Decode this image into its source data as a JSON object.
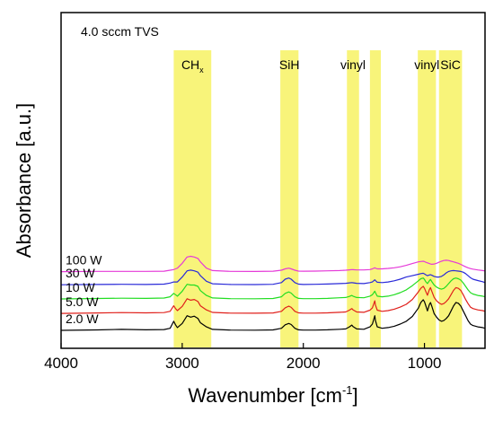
{
  "chart_data": {
    "type": "line",
    "annotation": "4.0 sccm TVS",
    "xlabel_main": "Wavenumber [cm",
    "xlabel_sup": "-1",
    "xlabel_end": "]",
    "ylabel": "Absorbance [a.u.]",
    "xlim": [
      4000,
      500
    ],
    "xticks": [
      4000,
      3000,
      2000,
      1000
    ],
    "x_reversed": true,
    "y_ticks_shown": false,
    "bands": [
      {
        "label": "CH",
        "label_sub": "x",
        "from": 3070,
        "to": 2760
      },
      {
        "label": "SiH",
        "label_sub": "",
        "from": 2190,
        "to": 2040
      },
      {
        "label": "vinyl",
        "label_sub": "",
        "from": 1640,
        "to": 1540
      },
      {
        "label": "",
        "label_sub": "",
        "from": 1450,
        "to": 1360
      },
      {
        "label": "vinyl",
        "label_sub": "",
        "from": 1055,
        "to": 905
      },
      {
        "label": "SiC",
        "label_sub": "",
        "from": 880,
        "to": 690
      }
    ],
    "band_color": "#f8f47a",
    "series": [
      {
        "name": "2.0 W",
        "color": "#000000",
        "offset": 0,
        "x": [
          4000,
          3700,
          3500,
          3300,
          3150,
          3100,
          3070,
          3055,
          3040,
          3000,
          2960,
          2930,
          2900,
          2870,
          2850,
          2800,
          2750,
          2600,
          2400,
          2250,
          2180,
          2150,
          2120,
          2100,
          2070,
          2040,
          2000,
          1900,
          1800,
          1700,
          1650,
          1620,
          1600,
          1590,
          1560,
          1500,
          1450,
          1430,
          1410,
          1405,
          1390,
          1350,
          1300,
          1250,
          1200,
          1150,
          1100,
          1050,
          1030,
          1010,
          1000,
          990,
          975,
          960,
          950,
          940,
          920,
          900,
          880,
          860,
          840,
          820,
          800,
          780,
          760,
          740,
          720,
          700,
          680,
          660,
          640,
          620,
          600,
          560,
          520,
          500
        ],
        "y": [
          0.0,
          0.3,
          0.7,
          0.4,
          0.6,
          1.5,
          6.5,
          4.0,
          2.0,
          5.0,
          10.5,
          9.5,
          10.2,
          8.5,
          5.5,
          2.5,
          0.7,
          0.2,
          0.1,
          0.3,
          1.5,
          4.0,
          5.0,
          4.2,
          1.5,
          0.4,
          0.2,
          0.2,
          0.4,
          0.8,
          1.0,
          2.5,
          3.8,
          2.8,
          1.0,
          0.8,
          2.5,
          4.5,
          10.5,
          7.0,
          2.5,
          1.5,
          2.0,
          3.0,
          4.5,
          6.5,
          10.0,
          16.0,
          20.0,
          22.0,
          20.5,
          18.0,
          14.0,
          18.5,
          20.0,
          17.5,
          12.0,
          9.5,
          7.5,
          6.5,
          7.0,
          8.5,
          10.5,
          14.0,
          17.5,
          20.0,
          19.5,
          17.5,
          14.0,
          10.5,
          7.0,
          4.5,
          3.5,
          2.5,
          2.0,
          1.5
        ]
      },
      {
        "name": "5.0 W",
        "color": "#e0201b",
        "offset": 12.2,
        "x": [
          4000,
          3700,
          3500,
          3300,
          3150,
          3100,
          3070,
          3055,
          3040,
          3000,
          2960,
          2930,
          2900,
          2870,
          2850,
          2800,
          2750,
          2600,
          2400,
          2250,
          2180,
          2150,
          2120,
          2100,
          2070,
          2040,
          2000,
          1900,
          1800,
          1700,
          1650,
          1620,
          1600,
          1590,
          1560,
          1500,
          1450,
          1430,
          1410,
          1405,
          1390,
          1350,
          1300,
          1250,
          1200,
          1150,
          1100,
          1050,
          1030,
          1010,
          1000,
          990,
          975,
          960,
          950,
          940,
          920,
          900,
          880,
          860,
          840,
          820,
          800,
          780,
          760,
          740,
          720,
          700,
          680,
          660,
          640,
          620,
          600,
          560,
          520,
          500
        ],
        "y": [
          0.0,
          0.3,
          0.6,
          0.4,
          0.6,
          1.5,
          5.5,
          3.5,
          2.0,
          5.0,
          10.5,
          9.5,
          10.0,
          8.5,
          5.5,
          2.5,
          0.7,
          0.2,
          0.1,
          0.3,
          1.5,
          4.0,
          5.2,
          4.3,
          1.5,
          0.4,
          0.2,
          0.2,
          0.4,
          0.8,
          1.0,
          2.3,
          3.5,
          2.6,
          1.0,
          0.8,
          2.3,
          4.0,
          9.0,
          6.0,
          2.3,
          1.5,
          2.0,
          3.0,
          4.5,
          6.5,
          10.0,
          15.5,
          18.0,
          19.5,
          18.0,
          16.0,
          13.0,
          17.0,
          18.5,
          16.0,
          11.5,
          9.0,
          7.5,
          6.5,
          7.0,
          8.5,
          10.5,
          13.5,
          16.5,
          18.5,
          18.0,
          16.5,
          13.5,
          10.0,
          7.0,
          4.5,
          3.5,
          2.5,
          2.0,
          1.5
        ]
      },
      {
        "name": "10 W",
        "color": "#22dd22",
        "offset": 22.6,
        "x": [
          4000,
          3700,
          3500,
          3300,
          3150,
          3100,
          3070,
          3055,
          3040,
          3000,
          2960,
          2930,
          2900,
          2870,
          2850,
          2800,
          2750,
          2600,
          2400,
          2250,
          2180,
          2150,
          2120,
          2100,
          2070,
          2040,
          2000,
          1900,
          1800,
          1700,
          1650,
          1620,
          1600,
          1590,
          1560,
          1500,
          1450,
          1430,
          1410,
          1405,
          1390,
          1350,
          1300,
          1250,
          1200,
          1150,
          1100,
          1050,
          1030,
          1010,
          1000,
          990,
          975,
          960,
          950,
          940,
          920,
          900,
          880,
          860,
          840,
          820,
          800,
          780,
          760,
          740,
          720,
          700,
          680,
          660,
          640,
          620,
          600,
          560,
          520,
          500
        ],
        "y": [
          0.0,
          0.3,
          0.5,
          0.4,
          0.6,
          1.5,
          4.0,
          3.0,
          2.0,
          5.5,
          10.5,
          10.0,
          10.0,
          9.0,
          6.0,
          2.5,
          0.7,
          0.2,
          0.1,
          0.3,
          1.5,
          4.0,
          5.0,
          4.2,
          1.5,
          0.4,
          0.2,
          0.2,
          0.4,
          0.8,
          1.0,
          1.8,
          2.5,
          2.0,
          1.0,
          0.8,
          2.0,
          3.0,
          5.5,
          4.5,
          2.0,
          1.5,
          2.0,
          3.0,
          4.5,
          6.5,
          9.5,
          13.0,
          14.5,
          15.0,
          14.0,
          12.5,
          11.0,
          13.0,
          14.0,
          12.5,
          10.0,
          8.5,
          7.5,
          7.0,
          7.5,
          9.0,
          11.0,
          13.0,
          14.5,
          15.0,
          14.5,
          13.5,
          11.5,
          9.0,
          6.5,
          4.5,
          3.5,
          2.5,
          2.0,
          1.5
        ]
      },
      {
        "name": "30 W",
        "color": "#2a2ad8",
        "offset": 32.8,
        "x": [
          4000,
          3700,
          3500,
          3300,
          3150,
          3100,
          3070,
          3055,
          3040,
          3000,
          2960,
          2930,
          2900,
          2870,
          2850,
          2800,
          2750,
          2600,
          2400,
          2250,
          2180,
          2150,
          2120,
          2100,
          2070,
          2040,
          2000,
          1900,
          1800,
          1700,
          1650,
          1620,
          1600,
          1590,
          1560,
          1500,
          1450,
          1430,
          1410,
          1405,
          1390,
          1350,
          1300,
          1250,
          1200,
          1150,
          1100,
          1050,
          1030,
          1010,
          1000,
          990,
          975,
          960,
          950,
          940,
          920,
          900,
          880,
          860,
          840,
          820,
          800,
          780,
          760,
          740,
          720,
          700,
          680,
          660,
          640,
          620,
          600,
          560,
          520,
          500
        ],
        "y": [
          0.0,
          0.2,
          0.3,
          0.2,
          0.4,
          1.2,
          2.0,
          2.0,
          2.0,
          5.5,
          10.0,
          10.5,
          10.0,
          9.0,
          6.5,
          2.5,
          0.7,
          0.2,
          0.1,
          0.3,
          1.5,
          4.0,
          4.8,
          4.0,
          1.5,
          0.4,
          0.2,
          0.3,
          0.5,
          0.8,
          1.0,
          1.3,
          1.5,
          1.4,
          1.0,
          0.8,
          1.5,
          2.0,
          3.5,
          3.0,
          1.8,
          1.5,
          2.0,
          2.8,
          4.0,
          5.5,
          6.5,
          7.5,
          8.0,
          8.2,
          7.8,
          7.2,
          6.5,
          7.0,
          7.2,
          6.8,
          6.0,
          5.5,
          5.5,
          6.0,
          7.0,
          8.5,
          9.5,
          10.0,
          10.2,
          10.0,
          9.8,
          9.5,
          9.0,
          8.0,
          6.5,
          5.0,
          4.0,
          3.0,
          2.2,
          1.5
        ]
      },
      {
        "name": "100 W",
        "color": "#e53ad8",
        "offset": 42.2,
        "x": [
          4000,
          3700,
          3500,
          3300,
          3150,
          3100,
          3070,
          3055,
          3040,
          3000,
          2960,
          2930,
          2900,
          2870,
          2850,
          2800,
          2750,
          2600,
          2400,
          2250,
          2180,
          2150,
          2120,
          2100,
          2070,
          2040,
          2000,
          1900,
          1800,
          1700,
          1650,
          1620,
          1600,
          1590,
          1560,
          1500,
          1450,
          1430,
          1410,
          1405,
          1390,
          1350,
          1300,
          1250,
          1200,
          1150,
          1100,
          1050,
          1030,
          1010,
          1000,
          990,
          975,
          960,
          950,
          940,
          920,
          900,
          880,
          860,
          840,
          820,
          800,
          780,
          760,
          740,
          720,
          700,
          680,
          660,
          640,
          620,
          600,
          560,
          520,
          500
        ],
        "y": [
          0.0,
          0.2,
          0.2,
          0.2,
          0.3,
          1.0,
          1.5,
          2.0,
          2.5,
          6.0,
          10.5,
          11.0,
          10.5,
          9.5,
          7.0,
          2.5,
          0.8,
          0.2,
          0.1,
          0.3,
          1.0,
          2.0,
          2.5,
          2.0,
          1.0,
          0.4,
          0.3,
          0.4,
          0.6,
          0.8,
          1.0,
          1.3,
          1.5,
          1.4,
          1.2,
          1.2,
          1.5,
          2.0,
          2.8,
          2.5,
          2.0,
          2.0,
          2.3,
          2.8,
          3.5,
          4.5,
          5.8,
          7.0,
          7.3,
          7.5,
          7.2,
          6.8,
          6.3,
          5.8,
          5.5,
          5.3,
          5.5,
          6.0,
          6.8,
          7.5,
          8.0,
          8.2,
          8.0,
          7.5,
          7.0,
          6.5,
          6.0,
          5.2,
          4.3,
          3.5,
          2.8,
          2.2,
          1.8,
          1.2,
          0.8,
          0.5
        ]
      }
    ]
  }
}
